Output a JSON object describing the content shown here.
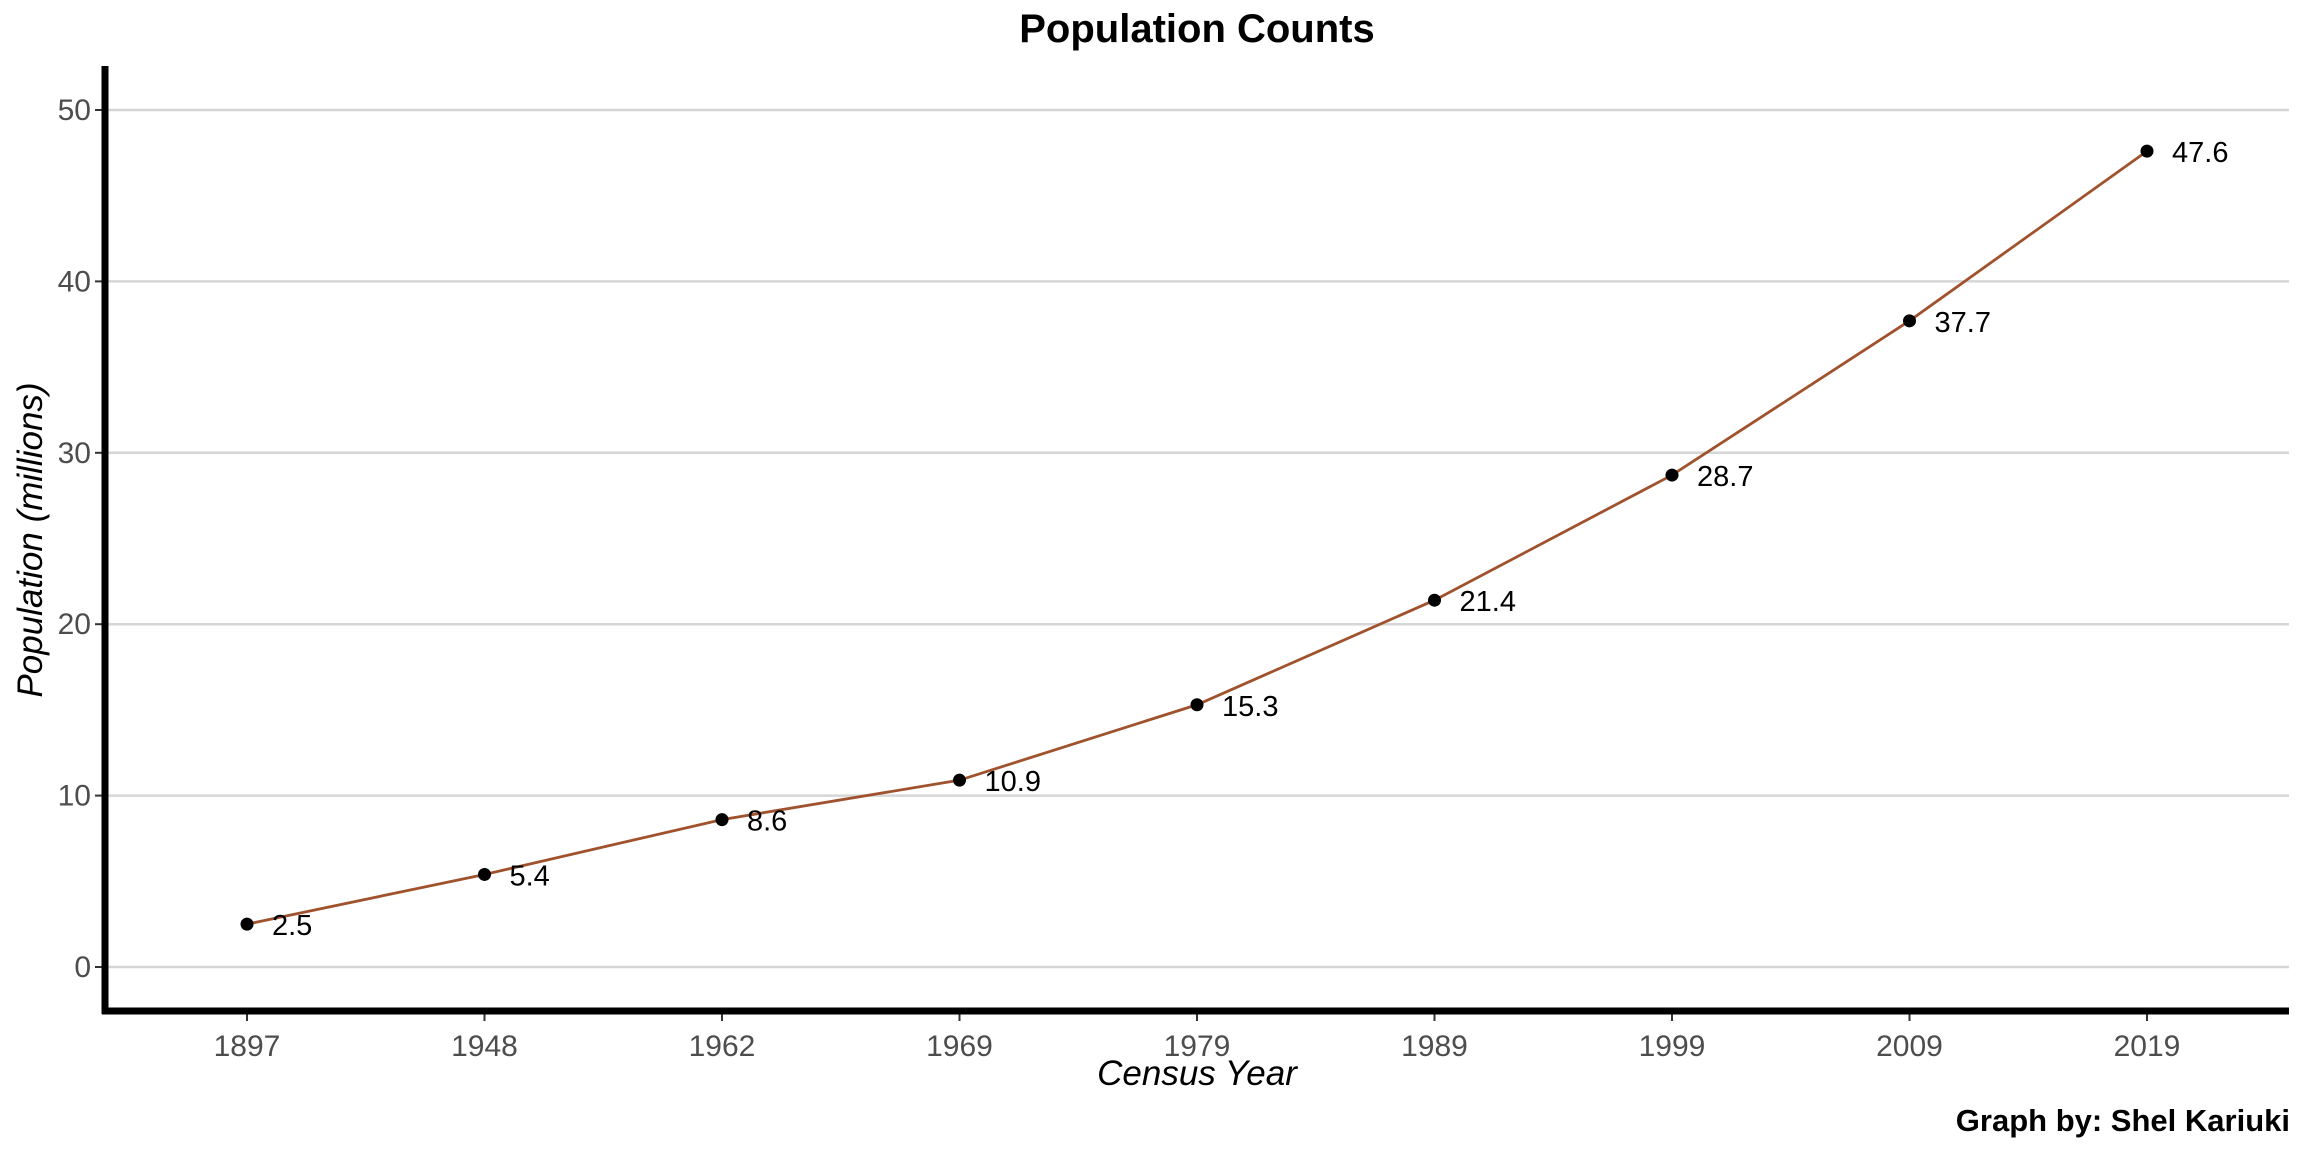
{
  "chart_data": {
    "type": "line",
    "title": "Population Counts",
    "xlabel": "Census Year",
    "ylabel": "Population (millions)",
    "caption": "Graph by: Shel Kariuki",
    "categories": [
      "1897",
      "1948",
      "1962",
      "1969",
      "1979",
      "1989",
      "1999",
      "2009",
      "2019"
    ],
    "series": [
      {
        "values": [
          2.5,
          5.4,
          8.6,
          10.9,
          15.3,
          21.4,
          28.7,
          37.7,
          47.6
        ],
        "labels": [
          "2.5",
          "5.4",
          "8.6",
          "10.9",
          "15.3",
          "21.4",
          "28.7",
          "37.7",
          "47.6"
        ]
      }
    ],
    "yticks": [
      0,
      10,
      20,
      30,
      40,
      50
    ],
    "ylim": [
      -2.5,
      52.5
    ],
    "grid": "horizontal",
    "line_color": "#A0522D",
    "point_color": "#000000"
  }
}
